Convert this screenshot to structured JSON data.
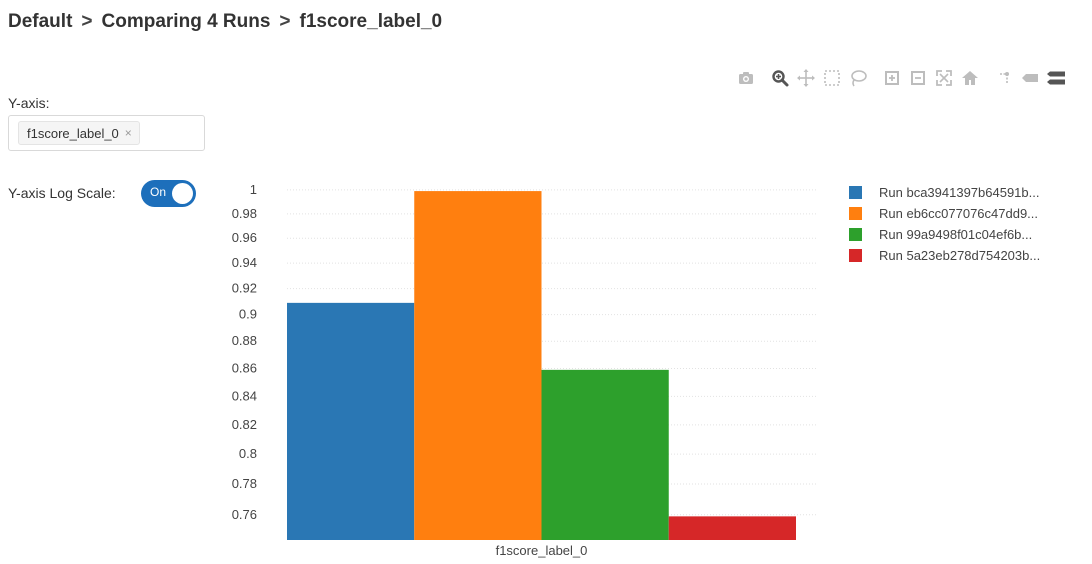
{
  "breadcrumb": {
    "items": [
      "Default",
      "Comparing 4 Runs",
      "f1score_label_0"
    ],
    "separator": ">"
  },
  "toolbar": {
    "icons": [
      "camera-icon",
      "zoom-icon",
      "pan-icon",
      "box-select-icon",
      "lasso-select-icon",
      "zoom-in-icon",
      "zoom-out-icon",
      "autoscale-icon",
      "home-icon",
      "spike-lines-icon",
      "hover-closest-icon",
      "hover-compare-icon"
    ]
  },
  "y_axis_selector": {
    "label": "Y-axis:",
    "selected": "f1score_label_0",
    "remove_symbol": "×"
  },
  "log_scale": {
    "label": "Y-axis Log Scale:",
    "state_text": "On",
    "enabled": true
  },
  "chart_data": {
    "type": "bar",
    "categories": [
      "f1score_label_0"
    ],
    "series": [
      {
        "name": "Run bca3941397b64591b...",
        "values": [
          0.909
        ],
        "color": "#2a77b4"
      },
      {
        "name": "Run eb6cc077076c47dd9...",
        "values": [
          0.999
        ],
        "color": "#ff7f0f"
      },
      {
        "name": "Run 99a9498f01c04ef6b...",
        "values": [
          0.859
        ],
        "color": "#2da02c"
      },
      {
        "name": "Run 5a23eb278d754203b...",
        "values": [
          0.759
        ],
        "color": "#d62728"
      }
    ],
    "xlabel": "",
    "ylabel": "",
    "y_scale": "log",
    "ylim": [
      0.744,
      1.005
    ],
    "yticks": [
      0.76,
      0.78,
      0.8,
      0.82,
      0.84,
      0.86,
      0.88,
      0.9,
      0.92,
      0.94,
      0.96,
      0.98,
      1
    ],
    "grid": true,
    "legend_position": "right"
  }
}
